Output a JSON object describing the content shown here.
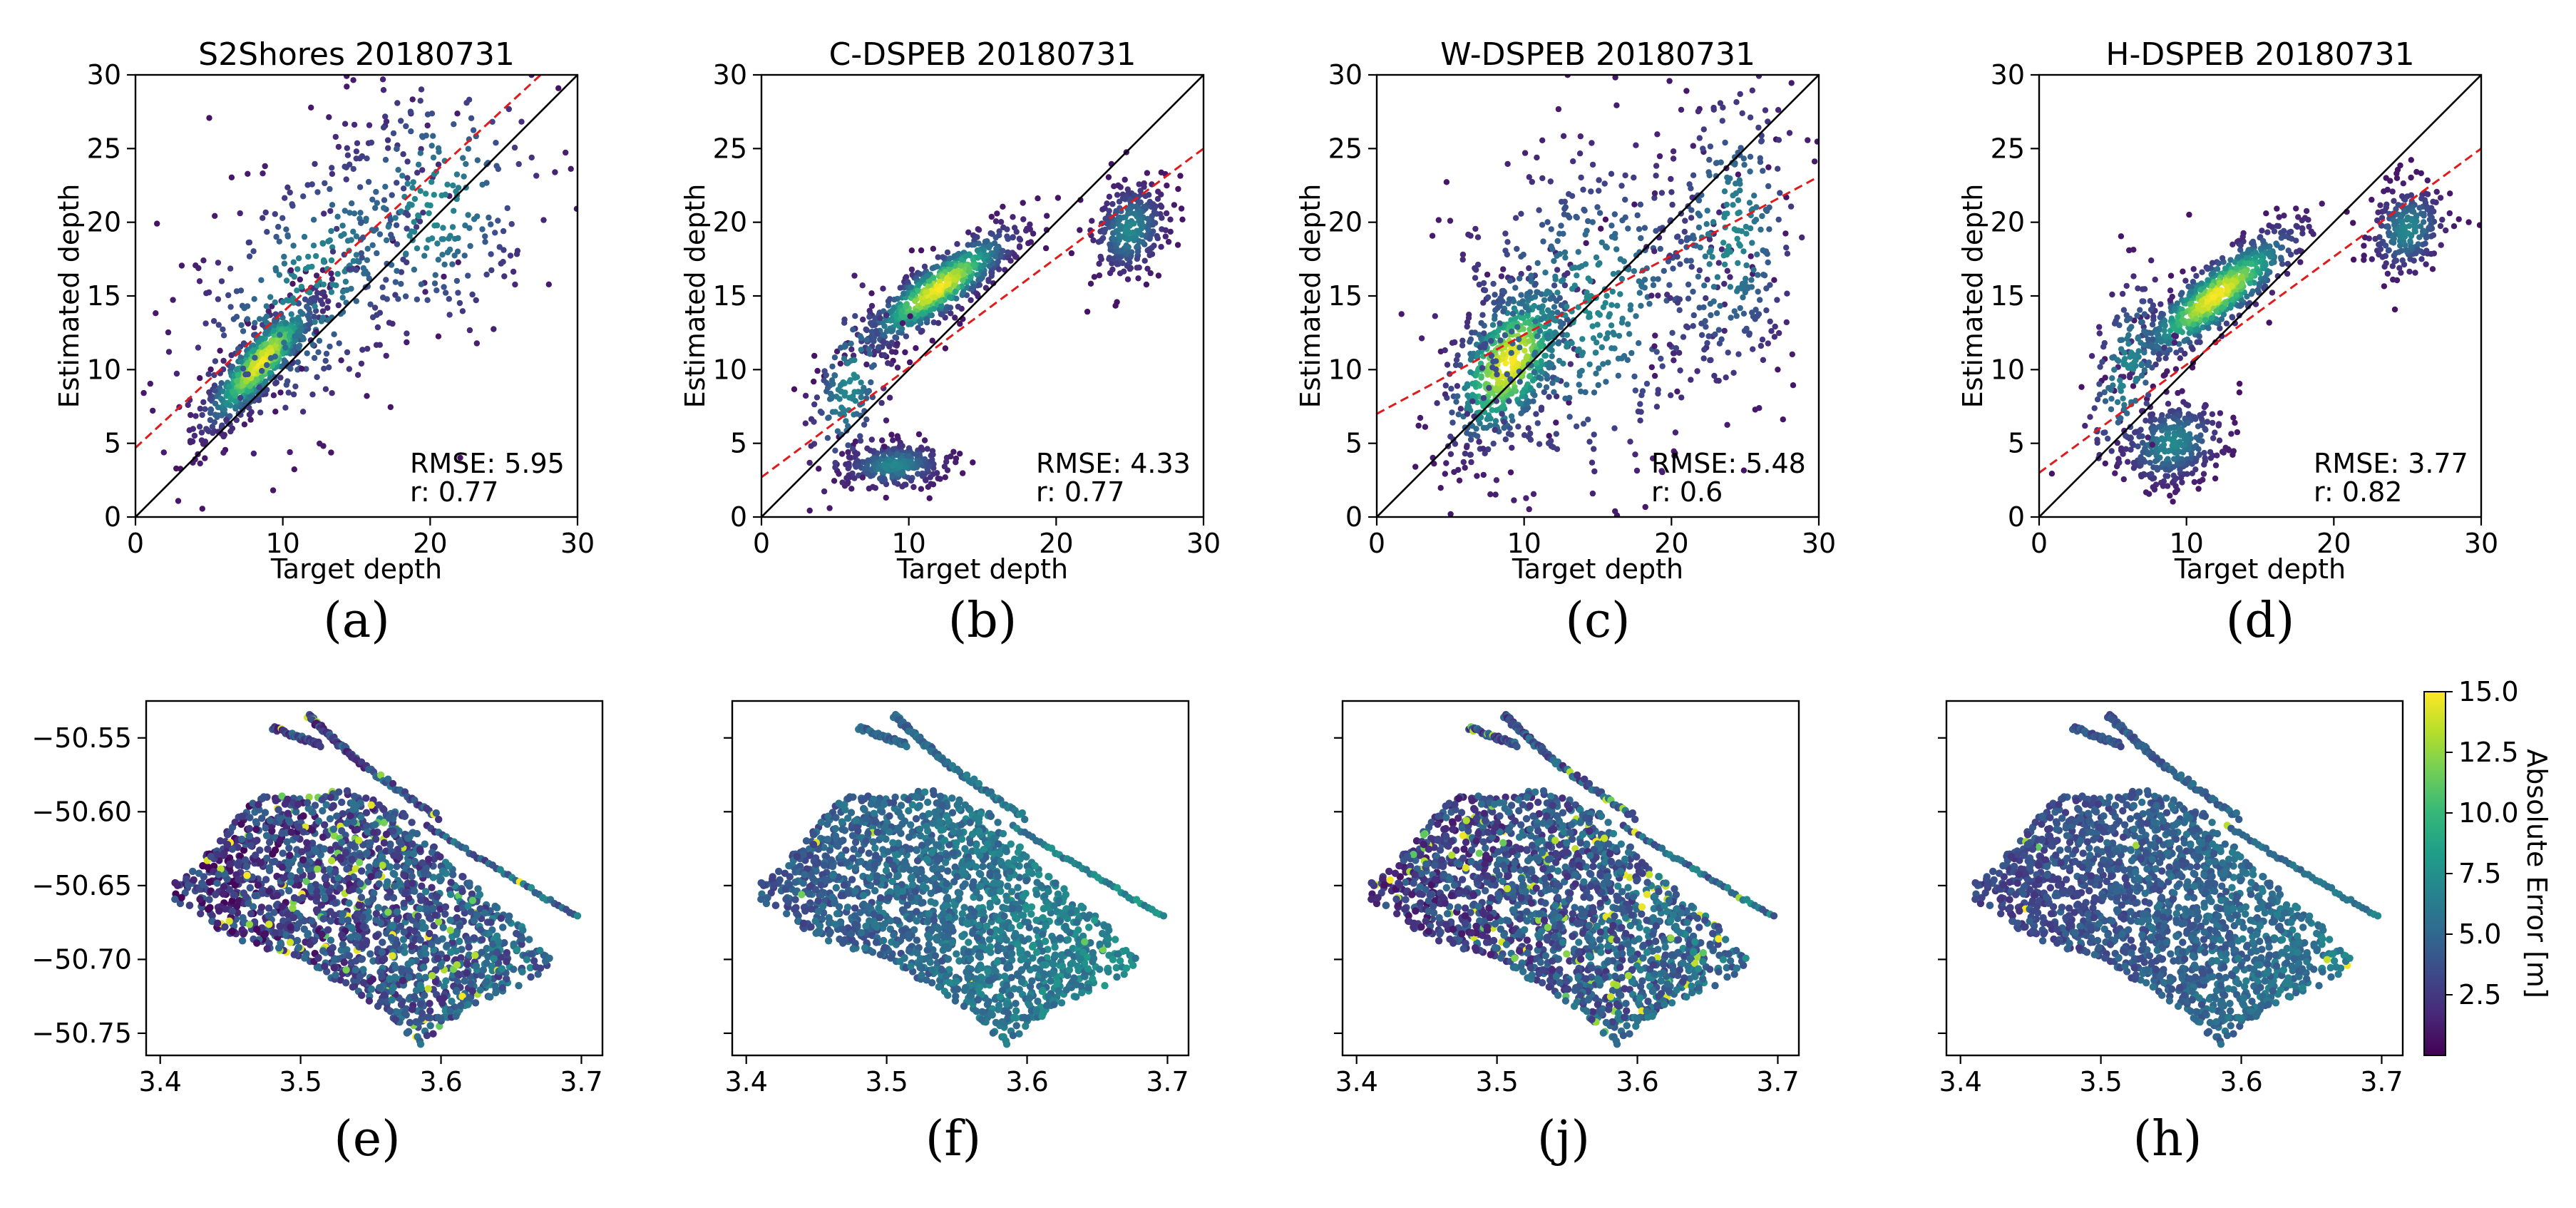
{
  "chart_data": [
    {
      "id": "a",
      "type": "scatter",
      "title": "S2Shores 20180731",
      "xlabel": "Target depth",
      "ylabel": "Estimated depth",
      "xlim": [
        0,
        30
      ],
      "ylim": [
        0,
        30
      ],
      "xticks": [
        0,
        10,
        20,
        30
      ],
      "yticks": [
        0,
        5,
        10,
        15,
        20,
        25,
        30
      ],
      "rmse_text": "RMSE: 5.95",
      "r_text": "r: 0.77",
      "identity_line": [
        [
          0,
          0
        ],
        [
          30,
          30
        ]
      ],
      "fit_line": [
        [
          0,
          4.7
        ],
        [
          27.5,
          30
        ]
      ],
      "caption": "(a)",
      "density_clusters": [
        {
          "x": 8.5,
          "y": 10.5,
          "sx": 2.0,
          "sy": 2.3,
          "rho": 0.85,
          "n": 700
        },
        {
          "x": 12,
          "y": 16,
          "sx": 4.5,
          "sy": 5.5,
          "rho": 0.55,
          "n": 350
        },
        {
          "x": 20,
          "y": 21,
          "sx": 4.0,
          "sy": 5.0,
          "rho": 0.2,
          "n": 250
        }
      ]
    },
    {
      "id": "b",
      "type": "scatter",
      "title": "C-DSPEB 20180731",
      "xlabel": "Target depth",
      "ylabel": "Estimated depth",
      "xlim": [
        0,
        30
      ],
      "ylim": [
        0,
        30
      ],
      "xticks": [
        0,
        10,
        20,
        30
      ],
      "yticks": [
        0,
        5,
        10,
        15,
        20,
        25,
        30
      ],
      "rmse_text": "RMSE: 4.33",
      "r_text": "r: 0.77",
      "identity_line": [
        [
          0,
          0
        ],
        [
          30,
          30
        ]
      ],
      "fit_line": [
        [
          0,
          2.7
        ],
        [
          30,
          25
        ]
      ],
      "caption": "(b)",
      "density_clusters": [
        {
          "x": 12,
          "y": 15.5,
          "sx": 2.6,
          "sy": 2.0,
          "rho": 0.85,
          "n": 700
        },
        {
          "x": 9,
          "y": 3.5,
          "sx": 1.8,
          "sy": 0.8,
          "rho": 0.1,
          "n": 300
        },
        {
          "x": 25,
          "y": 19.5,
          "sx": 1.3,
          "sy": 1.6,
          "rho": 0.2,
          "n": 300
        },
        {
          "x": 6,
          "y": 9,
          "sx": 1.5,
          "sy": 3.5,
          "rho": 0.4,
          "n": 150
        }
      ]
    },
    {
      "id": "c",
      "type": "scatter",
      "title": "W-DSPEB 20180731",
      "xlabel": "Target depth",
      "ylabel": "Estimated depth",
      "xlim": [
        0,
        30
      ],
      "ylim": [
        0,
        30
      ],
      "xticks": [
        0,
        10,
        20,
        30
      ],
      "yticks": [
        0,
        5,
        10,
        15,
        20,
        25,
        30
      ],
      "rmse_text": "RMSE: 5.48",
      "r_text": "r: 0.6",
      "identity_line": [
        [
          0,
          0
        ],
        [
          30,
          30
        ]
      ],
      "fit_line": [
        [
          0,
          7
        ],
        [
          30,
          23.1
        ]
      ],
      "caption": "(c)",
      "density_clusters": [
        {
          "x": 9,
          "y": 10.5,
          "sx": 2.2,
          "sy": 3.0,
          "rho": 0.5,
          "n": 600
        },
        {
          "x": 14,
          "y": 14,
          "sx": 5.0,
          "sy": 6.0,
          "rho": 0.2,
          "n": 500
        },
        {
          "x": 24,
          "y": 19,
          "sx": 2.5,
          "sy": 5.5,
          "rho": 0.1,
          "n": 300
        }
      ]
    },
    {
      "id": "d",
      "type": "scatter",
      "title": "H-DSPEB 20180731",
      "xlabel": "Target depth",
      "ylabel": "Estimated depth",
      "xlim": [
        0,
        30
      ],
      "ylim": [
        0,
        30
      ],
      "xticks": [
        0,
        10,
        20,
        30
      ],
      "yticks": [
        0,
        5,
        10,
        15,
        20,
        25,
        30
      ],
      "rmse_text": "RMSE: 3.77",
      "r_text": "r: 0.82",
      "identity_line": [
        [
          0,
          0
        ],
        [
          30,
          30
        ]
      ],
      "fit_line": [
        [
          0,
          3
        ],
        [
          30,
          25
        ]
      ],
      "caption": "(d)",
      "density_clusters": [
        {
          "x": 12,
          "y": 15,
          "sx": 2.8,
          "sy": 2.3,
          "rho": 0.85,
          "n": 700
        },
        {
          "x": 9,
          "y": 5,
          "sx": 1.8,
          "sy": 1.5,
          "rho": 0.2,
          "n": 350
        },
        {
          "x": 25,
          "y": 19.5,
          "sx": 1.3,
          "sy": 1.5,
          "rho": 0.2,
          "n": 250
        },
        {
          "x": 6,
          "y": 10,
          "sx": 1.5,
          "sy": 3.5,
          "rho": 0.4,
          "n": 150
        }
      ]
    },
    {
      "id": "e",
      "type": "scatter",
      "xlim": [
        3.39,
        3.715
      ],
      "ylim": [
        -50.765,
        -50.525
      ],
      "xticks": [
        3.4,
        3.5,
        3.6,
        3.7
      ],
      "xtick_labels": [
        "3.4",
        "3.5",
        "3.6",
        "3.7"
      ],
      "yticks": [
        -50.55,
        -50.6,
        -50.65,
        -50.7,
        -50.75
      ],
      "ytick_labels": [
        "−50.55",
        "−50.60",
        "−50.65",
        "−50.70",
        "−50.75"
      ],
      "caption": "(e)",
      "error_profile": {
        "base": 3.0,
        "spread": 5.0,
        "hot_fraction": 0.06
      }
    },
    {
      "id": "f",
      "type": "scatter",
      "xlim": [
        3.39,
        3.715
      ],
      "ylim": [
        -50.765,
        -50.525
      ],
      "xticks": [
        3.4,
        3.5,
        3.6,
        3.7
      ],
      "xtick_labels": [
        "3.4",
        "3.5",
        "3.6",
        "3.7"
      ],
      "caption": "(f)",
      "error_profile": {
        "base": 5.0,
        "spread": 3.0,
        "hot_fraction": 0.005
      }
    },
    {
      "id": "j",
      "type": "scatter",
      "xlim": [
        3.39,
        3.715
      ],
      "ylim": [
        -50.765,
        -50.525
      ],
      "xticks": [
        3.4,
        3.5,
        3.6,
        3.7
      ],
      "xtick_labels": [
        "3.4",
        "3.5",
        "3.6",
        "3.7"
      ],
      "caption": "(j)",
      "error_profile": {
        "base": 3.5,
        "spread": 4.5,
        "hot_fraction": 0.05
      }
    },
    {
      "id": "h",
      "type": "scatter",
      "xlim": [
        3.39,
        3.715
      ],
      "ylim": [
        -50.765,
        -50.525
      ],
      "xticks": [
        3.4,
        3.5,
        3.6,
        3.7
      ],
      "xtick_labels": [
        "3.4",
        "3.5",
        "3.6",
        "3.7"
      ],
      "caption": "(h)",
      "error_profile": {
        "base": 4.0,
        "spread": 2.5,
        "hot_fraction": 0.003
      }
    }
  ],
  "colorbar": {
    "label": "Absolute Error [m]",
    "range": [
      0,
      15
    ],
    "ticks": [
      2.5,
      5.0,
      7.5,
      10.0,
      12.5,
      15.0
    ],
    "tick_labels": [
      "2.5",
      "5.0",
      "7.5",
      "10.0",
      "12.5",
      "15.0"
    ],
    "colormap": "viridis"
  },
  "colors": {
    "identity_line": "#000000",
    "fit_line": "#e31a1c",
    "viridis_stops": [
      "#440154",
      "#482878",
      "#3e4989",
      "#31688e",
      "#26828e",
      "#1f9e89",
      "#35b779",
      "#6ece58",
      "#b5de2b",
      "#fde725"
    ]
  }
}
